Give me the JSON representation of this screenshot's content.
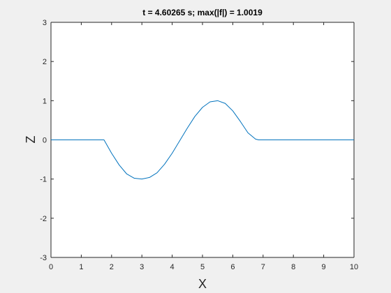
{
  "chart_data": {
    "type": "line",
    "title": "t = 4.60265 s;  max(|f|) = 1.0019",
    "xlabel": "X",
    "ylabel": "Z",
    "xlim": [
      0,
      10
    ],
    "ylim": [
      -3,
      3
    ],
    "xticks": [
      0,
      1,
      2,
      3,
      4,
      5,
      6,
      7,
      8,
      9,
      10
    ],
    "yticks": [
      -3,
      -2,
      -1,
      0,
      1,
      2,
      3
    ],
    "grid": false,
    "series": [
      {
        "color": "#0072bd",
        "x": [
          0,
          0.5,
          1.0,
          1.5,
          1.75,
          2.0,
          2.25,
          2.5,
          2.75,
          3.0,
          3.25,
          3.5,
          3.75,
          4.0,
          4.25,
          4.5,
          4.75,
          5.0,
          5.25,
          5.5,
          5.75,
          6.0,
          6.25,
          6.5,
          6.75,
          6.85,
          7.0,
          7.5,
          8.0,
          8.5,
          9.0,
          9.5,
          10.0
        ],
        "y": [
          0,
          0,
          0,
          0,
          0,
          -0.34,
          -0.64,
          -0.87,
          -0.98,
          -1.0,
          -0.96,
          -0.84,
          -0.62,
          -0.34,
          -0.02,
          0.3,
          0.6,
          0.83,
          0.97,
          1.0,
          0.93,
          0.74,
          0.47,
          0.18,
          0.02,
          0.0,
          0,
          0,
          0,
          0,
          0,
          0,
          0
        ]
      }
    ]
  }
}
